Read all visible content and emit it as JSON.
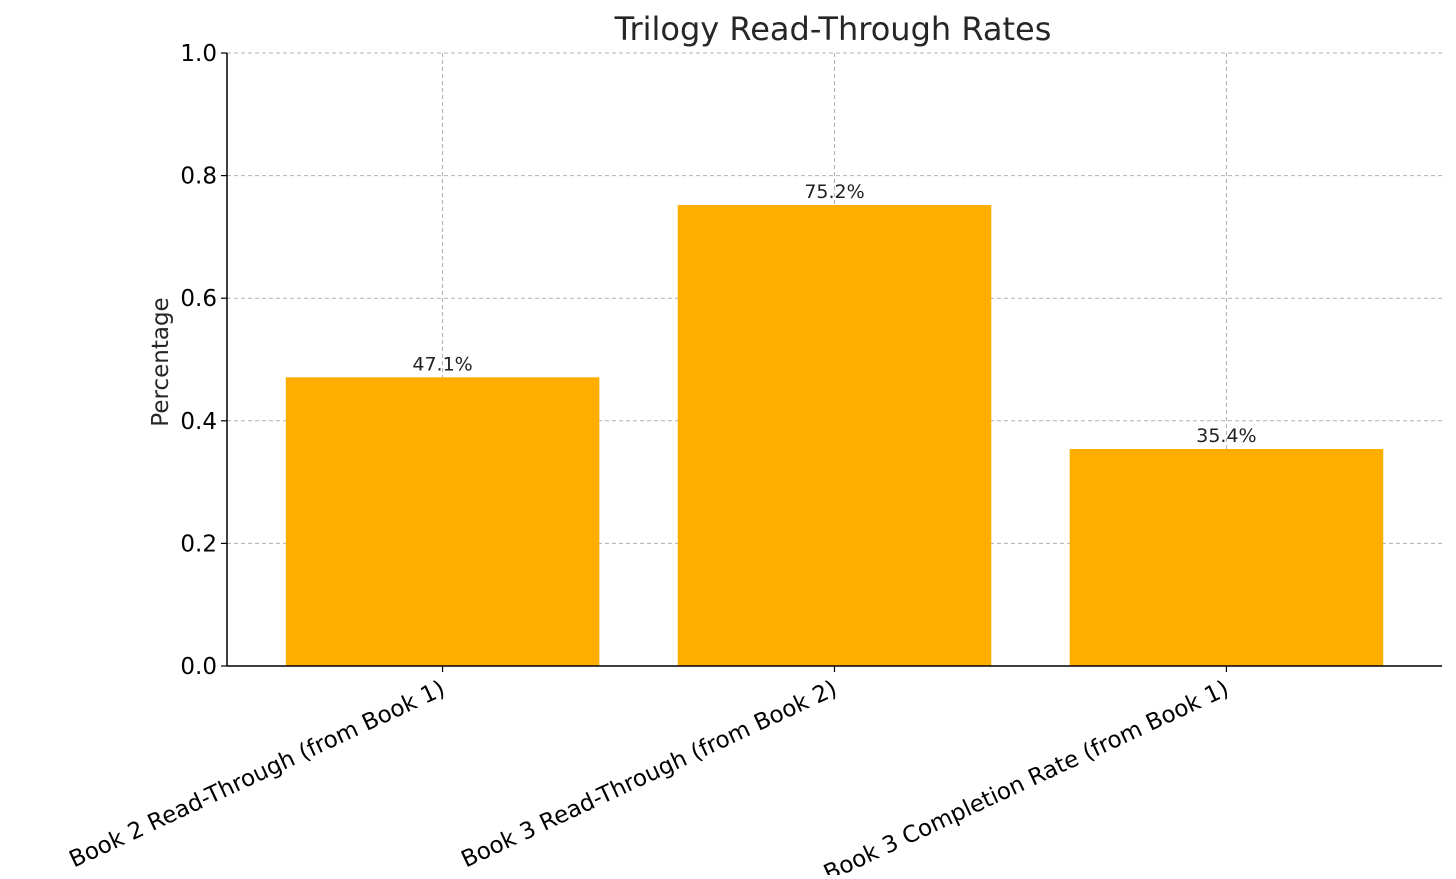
{
  "chart_data": {
    "type": "bar",
    "title": "Trilogy Read-Through Rates",
    "xlabel": "",
    "ylabel": "Percentage",
    "categories": [
      "Book 2 Read-Through (from Book 1)",
      "Book 3 Read-Through (from Book 2)",
      "Book 3 Completion Rate (from Book 1)"
    ],
    "values": [
      0.471,
      0.752,
      0.354
    ],
    "data_labels": [
      "47.1%",
      "75.2%",
      "35.4%"
    ],
    "yticks": [
      "0.0",
      "0.2",
      "0.4",
      "0.6",
      "0.8",
      "1.0"
    ],
    "ylim": [
      0,
      1
    ],
    "grid": true,
    "bar_color": "#FFAE00"
  }
}
